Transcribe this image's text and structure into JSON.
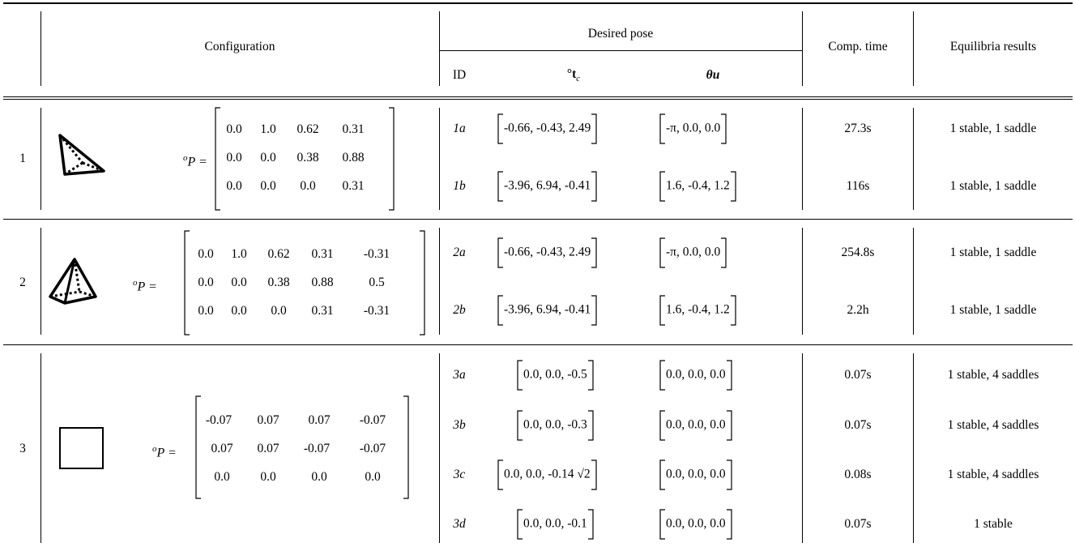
{
  "header": {
    "configuration": "Configuration",
    "desired_pose": "Desired pose",
    "id": "ID",
    "translation_label": "°t",
    "translation_sub": "c",
    "rotation_label": "θu",
    "comp_time": "Comp. time",
    "equilibria": "Equilibria results"
  },
  "groups": [
    {
      "number": "1",
      "shape_icon": "tetrahedron-icon",
      "matrix_label": "P =",
      "matrix": [
        [
          "0.0",
          "1.0",
          "0.62",
          "0.31"
        ],
        [
          "0.0",
          "0.0",
          "0.38",
          "0.88"
        ],
        [
          "0.0",
          "0.0",
          "0.0",
          "0.31"
        ]
      ],
      "rows": [
        {
          "id": "1a",
          "t": "-0.66, -0.43, 2.49",
          "r": "-π, 0.0, 0.0",
          "time": "27.3s",
          "result": "1 stable, 1 saddle"
        },
        {
          "id": "1b",
          "t": "-3.96, 6.94, -0.41",
          "r": "1.6, -0.4, 1.2",
          "time": "116s",
          "result": "1 stable, 1 saddle"
        }
      ]
    },
    {
      "number": "2",
      "shape_icon": "square-pyramid-icon",
      "matrix_label": "P =",
      "matrix": [
        [
          "0.0",
          "1.0",
          "0.62",
          "0.31",
          "-0.31"
        ],
        [
          "0.0",
          "0.0",
          "0.38",
          "0.88",
          "0.5"
        ],
        [
          "0.0",
          "0.0",
          "0.0",
          "0.31",
          "-0.31"
        ]
      ],
      "rows": [
        {
          "id": "2a",
          "t": "-0.66, -0.43, 2.49",
          "r": "-π, 0.0, 0.0",
          "time": "254.8s",
          "result": "1 stable, 1 saddle"
        },
        {
          "id": "2b",
          "t": "-3.96, 6.94, -0.41",
          "r": "1.6, -0.4, 1.2",
          "time": "2.2h",
          "result": "1 stable, 1 saddle"
        }
      ]
    },
    {
      "number": "3",
      "shape_icon": "square-icon",
      "matrix_label": "P =",
      "matrix": [
        [
          "-0.07",
          "0.07",
          "0.07",
          "-0.07"
        ],
        [
          "0.07",
          "0.07",
          "-0.07",
          "-0.07"
        ],
        [
          "0.0",
          "0.0",
          "0.0",
          "0.0"
        ]
      ],
      "rows": [
        {
          "id": "3a",
          "t": "0.0, 0.0, -0.5",
          "r": "0.0, 0.0, 0.0",
          "time": "0.07s",
          "result": "1 stable, 4 saddles"
        },
        {
          "id": "3b",
          "t": "0.0, 0.0, -0.3",
          "r": "0.0, 0.0, 0.0",
          "time": "0.07s",
          "result": "1 stable, 4 saddles"
        },
        {
          "id": "3c",
          "t": "0.0, 0.0, -0.14 √2",
          "r": "0.0, 0.0, 0.0",
          "time": "0.08s",
          "result": "1 stable, 4 saddles"
        },
        {
          "id": "3d",
          "t": "0.0, 0.0, -0.1",
          "r": "0.0, 0.0, 0.0",
          "time": "0.07s",
          "result": "1 stable"
        }
      ]
    }
  ]
}
